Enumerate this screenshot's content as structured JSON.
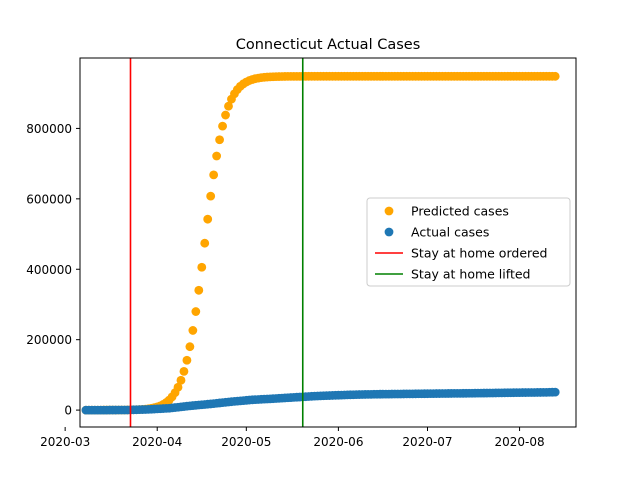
{
  "chart_data": {
    "type": "scatter",
    "title": "Connecticut Actual Cases",
    "xlabel": "",
    "ylabel": "",
    "x_start": "2020-03-08",
    "x_end": "2020-08-13",
    "xlim": [
      "2020-03-06",
      "2020-08-20"
    ],
    "ylim": [
      -48000,
      1000000
    ],
    "x_ticks": [
      "2020-03",
      "2020-04",
      "2020-05",
      "2020-06",
      "2020-07",
      "2020-08"
    ],
    "y_ticks": [
      0,
      200000,
      400000,
      600000,
      800000
    ],
    "y_tick_labels": [
      "0",
      "200000",
      "400000",
      "600000",
      "800000"
    ],
    "grid": false,
    "legend_position": "center-right",
    "series": [
      {
        "name": "Predicted cases",
        "kind": "scatter",
        "color": "#ffa500",
        "model": "logistic",
        "plateau": 948000,
        "midpoint": "2020-04-17",
        "growth_rate_per_day": 0.29
      },
      {
        "name": "Actual cases",
        "kind": "scatter",
        "color": "#1f77b4",
        "points": [
          [
            "2020-03-08",
            2
          ],
          [
            "2020-03-15",
            26
          ],
          [
            "2020-03-22",
            327
          ],
          [
            "2020-03-29",
            1993
          ],
          [
            "2020-04-05",
            5276
          ],
          [
            "2020-04-12",
            12035
          ],
          [
            "2020-04-19",
            17550
          ],
          [
            "2020-04-26",
            23921
          ],
          [
            "2020-05-03",
            29287
          ],
          [
            "2020-05-10",
            32411
          ],
          [
            "2020-05-17",
            36085
          ],
          [
            "2020-05-24",
            39640
          ],
          [
            "2020-05-31",
            42022
          ],
          [
            "2020-06-07",
            43968
          ],
          [
            "2020-06-14",
            45088
          ],
          [
            "2020-06-21",
            45715
          ],
          [
            "2020-06-28",
            46362
          ],
          [
            "2020-07-05",
            47033
          ],
          [
            "2020-07-12",
            47530
          ],
          [
            "2020-07-19",
            48223
          ],
          [
            "2020-07-26",
            48983
          ],
          [
            "2020-08-02",
            49810
          ],
          [
            "2020-08-09",
            50245
          ],
          [
            "2020-08-13",
            51000
          ]
        ]
      },
      {
        "name": "Stay at home ordered",
        "kind": "vline",
        "color": "#ff0000",
        "date": "2020-03-23"
      },
      {
        "name": "Stay at home lifted",
        "kind": "vline",
        "color": "#008000",
        "date": "2020-05-20"
      }
    ]
  }
}
